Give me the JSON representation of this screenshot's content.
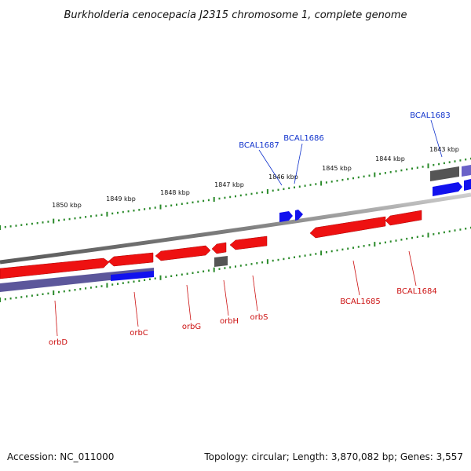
{
  "title": "Burkholderia cenocepacia J2315 chromosome 1, complete genome",
  "footer": {
    "accession": "Accession: NC_011000",
    "summary": "Topology: circular; Length: 3,870,082 bp; Genes: 3,557"
  },
  "colors": {
    "forward_gene": "#ee1111",
    "reverse_gene": "#1111ee",
    "pseudo_gene": "#555555",
    "repeat_region": "#4a4590",
    "tick": "#2a8a2a",
    "backbone": "#7a7a7a",
    "label_red": "#cc1111",
    "label_blue": "#1133cc"
  },
  "outer_ticks": [
    {
      "label": "1850 kbp"
    },
    {
      "label": "1849 kbp"
    },
    {
      "label": "1848 kbp"
    },
    {
      "label": "1847 kbp"
    },
    {
      "label": "1846 kbp"
    },
    {
      "label": "1845 kbp"
    },
    {
      "label": "1844 kbp"
    },
    {
      "label": "1843 kbp"
    }
  ],
  "labels_above": [
    {
      "text": "BCAL1687"
    },
    {
      "text": "BCAL1686"
    },
    {
      "text": "BCAL1683"
    }
  ],
  "labels_below": [
    {
      "text": "orbD"
    },
    {
      "text": "orbC"
    },
    {
      "text": "orbG"
    },
    {
      "text": "orbH"
    },
    {
      "text": "orbS"
    },
    {
      "text": "BCAL1685"
    },
    {
      "text": "BCAL1684"
    }
  ]
}
